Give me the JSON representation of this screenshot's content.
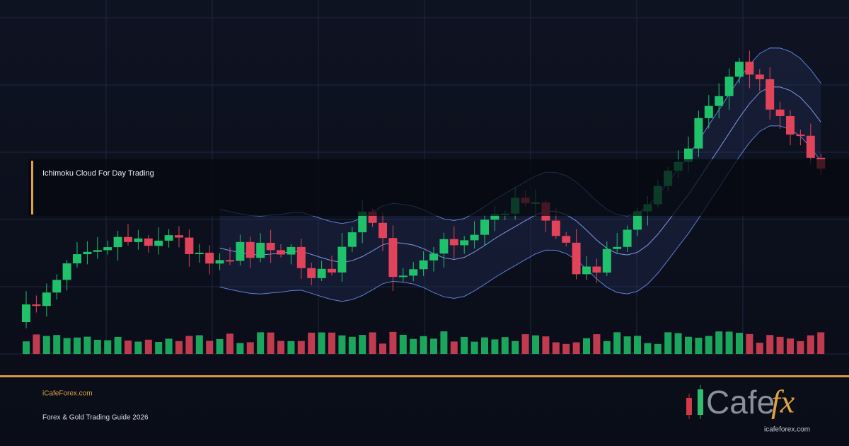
{
  "header": {
    "title": "Ichimoku Cloud For Day Trading"
  },
  "footer": {
    "site": "iCafeForex.com",
    "tagline": "Forex & Gold Trading Guide 2026"
  },
  "logo": {
    "word": "Cafe",
    "mark": "fx",
    "url": "icafeforex.com"
  }
}
